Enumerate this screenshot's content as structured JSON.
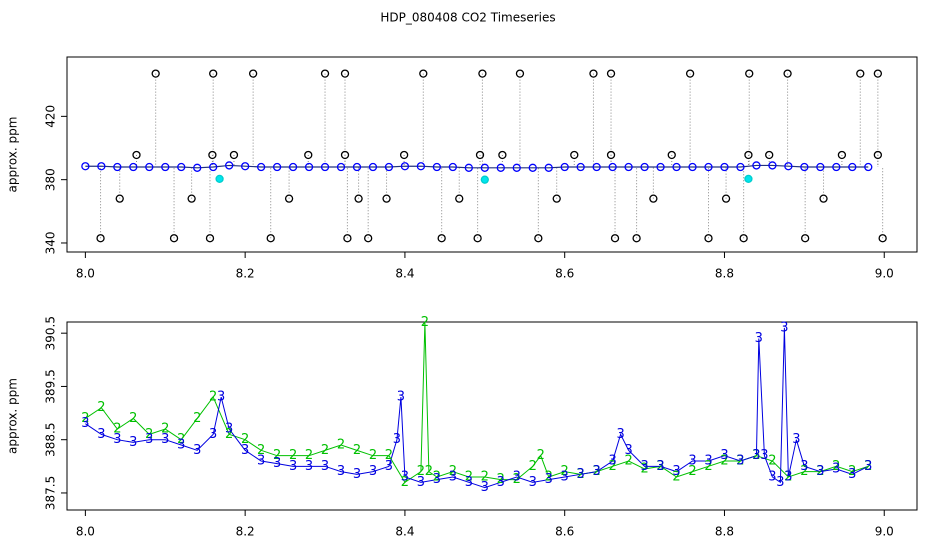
{
  "title": "HDP_080408  CO2 Timeseries",
  "chart_data": [
    {
      "type": "scatter",
      "ylabel": "approx. ppm",
      "xlim": [
        7.977,
        9.041
      ],
      "ylim": [
        334.3,
        457.5
      ],
      "xticks": [
        {
          "value": 8,
          "label": "8.0"
        },
        8.2,
        8.4,
        8.6,
        8.8,
        {
          "value": 9,
          "label": "9.0"
        }
      ],
      "yticks": [
        340,
        380,
        420
      ],
      "series": [
        {
          "color": "#0000ff",
          "fill": "none",
          "x": [
            8.0,
            8.02,
            8.04,
            8.06,
            8.08,
            8.1,
            8.12,
            8.14,
            8.16,
            8.18,
            8.2,
            8.22,
            8.24,
            8.26,
            8.28,
            8.3,
            8.32,
            8.34,
            8.36,
            8.38,
            8.4,
            8.42,
            8.44,
            8.46,
            8.48,
            8.5,
            8.52,
            8.54,
            8.56,
            8.58,
            8.6,
            8.62,
            8.64,
            8.66,
            8.68,
            8.7,
            8.72,
            8.74,
            8.76,
            8.78,
            8.8,
            8.82,
            8.84,
            8.86,
            8.88,
            8.9,
            8.92,
            8.94,
            8.96,
            8.98
          ],
          "values": [
            388.5,
            388.5,
            388,
            388,
            388,
            388,
            388,
            387.5,
            388,
            389,
            388.5,
            388,
            388,
            388,
            388,
            388,
            388,
            388,
            388,
            388,
            388.5,
            388.5,
            388,
            388,
            387.5,
            387.5,
            387.5,
            387.5,
            387.5,
            387.5,
            388,
            388,
            388,
            388,
            388,
            388,
            388,
            388,
            388,
            388,
            388,
            388,
            389,
            389,
            388.5,
            388,
            388,
            388,
            388,
            388
          ]
        },
        {
          "color": "#000000",
          "fill": "none",
          "x": [
            8.019,
            8.043,
            8.064,
            8.088,
            8.111,
            8.133,
            8.156,
            8.159,
            8.16,
            8.186,
            8.21,
            8.232,
            8.255,
            8.279,
            8.3,
            8.325,
            8.325,
            8.328,
            8.342,
            8.354,
            8.377,
            8.399,
            8.423,
            8.446,
            8.468,
            8.491,
            8.494,
            8.497,
            8.522,
            8.544,
            8.567,
            8.59,
            8.612,
            8.636,
            8.658,
            8.658,
            8.663,
            8.69,
            8.711,
            8.734,
            8.757,
            8.78,
            8.802,
            8.824,
            8.83,
            8.831,
            8.856,
            8.879,
            8.901,
            8.924,
            8.947,
            8.97,
            8.992,
            8.992,
            8.998
          ],
          "values": [
            343,
            368,
            395.6,
            447,
            343,
            368,
            343,
            395.6,
            447,
            395.6,
            447,
            343,
            368,
            395.6,
            447,
            447,
            395.6,
            343,
            368,
            343,
            368,
            395.6,
            447,
            343,
            368,
            343,
            395.6,
            447,
            395.6,
            447,
            343,
            368,
            395.6,
            447,
            447,
            395.6,
            343,
            343,
            368,
            395.6,
            447,
            343,
            368,
            343,
            395.6,
            447,
            395.6,
            447,
            343,
            368,
            395.6,
            447,
            447,
            395.6,
            343
          ]
        },
        {
          "color": "#00cdcd",
          "fill": "#00e5ee",
          "x": [
            8.168,
            8.5,
            8.83
          ],
          "values": [
            380.5,
            380,
            380.5
          ]
        }
      ]
    },
    {
      "type": "line",
      "ylabel": "approx. ppm",
      "xlim": [
        7.977,
        9.041
      ],
      "ylim": [
        387.18,
        390.71
      ],
      "xticks": [
        {
          "value": 8,
          "label": "8.0"
        },
        8.2,
        8.4,
        8.6,
        8.8,
        {
          "value": 9,
          "label": "9.0"
        }
      ],
      "yticks": [
        387.5,
        388.5,
        389.5,
        390.5
      ],
      "series": [
        {
          "marker": "2",
          "color": "#00c000",
          "x": [
            8.0,
            8.02,
            8.04,
            8.06,
            8.08,
            8.1,
            8.12,
            8.14,
            8.16,
            8.18,
            8.2,
            8.22,
            8.24,
            8.26,
            8.28,
            8.3,
            8.32,
            8.34,
            8.36,
            8.38,
            8.4,
            8.42,
            8.425,
            8.43,
            8.44,
            8.46,
            8.48,
            8.5,
            8.52,
            8.54,
            8.56,
            8.57,
            8.58,
            8.6,
            8.62,
            8.64,
            8.66,
            8.68,
            8.7,
            8.72,
            8.74,
            8.76,
            8.78,
            8.8,
            8.82,
            8.84,
            8.86,
            8.88,
            8.9,
            8.92,
            8.94,
            8.96,
            8.98
          ],
          "values": [
            388.9,
            389.1,
            388.7,
            388.9,
            388.6,
            388.7,
            388.5,
            388.9,
            389.3,
            388.6,
            388.5,
            388.3,
            388.2,
            388.2,
            388.2,
            388.3,
            388.4,
            388.3,
            388.2,
            388.2,
            387.7,
            387.9,
            390.7,
            387.9,
            387.8,
            387.9,
            387.8,
            387.8,
            387.75,
            387.75,
            388,
            388.2,
            387.8,
            387.9,
            387.85,
            387.9,
            388,
            388.1,
            387.95,
            388,
            387.8,
            387.9,
            388,
            388.1,
            388.1,
            388.2,
            388.1,
            387.8,
            387.9,
            387.9,
            388,
            387.9,
            388
          ]
        },
        {
          "marker": "3",
          "color": "#0000e0",
          "x": [
            8.0,
            8.02,
            8.04,
            8.06,
            8.08,
            8.1,
            8.12,
            8.14,
            8.16,
            8.17,
            8.18,
            8.2,
            8.22,
            8.24,
            8.26,
            8.28,
            8.3,
            8.32,
            8.34,
            8.36,
            8.38,
            8.39,
            8.395,
            8.4,
            8.42,
            8.44,
            8.46,
            8.48,
            8.5,
            8.52,
            8.54,
            8.56,
            8.58,
            8.6,
            8.62,
            8.64,
            8.66,
            8.67,
            8.68,
            8.7,
            8.72,
            8.74,
            8.76,
            8.78,
            8.8,
            8.82,
            8.84,
            8.843,
            8.85,
            8.86,
            8.87,
            8.875,
            8.88,
            8.89,
            8.9,
            8.92,
            8.94,
            8.96,
            8.98
          ],
          "values": [
            388.8,
            388.6,
            388.5,
            388.45,
            388.5,
            388.5,
            388.4,
            388.3,
            388.6,
            389.3,
            388.7,
            388.3,
            388.1,
            388.05,
            388,
            388,
            388,
            387.9,
            387.85,
            387.9,
            388,
            388.5,
            389.3,
            387.8,
            387.7,
            387.75,
            387.8,
            387.7,
            387.6,
            387.7,
            387.8,
            387.7,
            387.75,
            387.8,
            387.85,
            387.9,
            388.1,
            388.6,
            388.3,
            388,
            388,
            387.9,
            388.1,
            388.1,
            388.2,
            388.1,
            388.2,
            390.4,
            388.2,
            387.8,
            387.7,
            390.6,
            387.8,
            388.5,
            388,
            387.9,
            387.95,
            387.85,
            388
          ]
        }
      ]
    }
  ]
}
